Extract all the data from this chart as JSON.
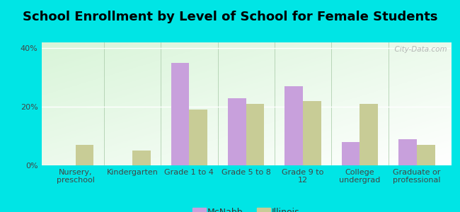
{
  "title": "School Enrollment by Level of School for Female Students",
  "categories": [
    "Nursery,\npreschool",
    "Kindergarten",
    "Grade 1 to 4",
    "Grade 5 to 8",
    "Grade 9 to\n12",
    "College\nundergrad",
    "Graduate or\nprofessional"
  ],
  "mcnabb": [
    0.0,
    0.0,
    35.0,
    23.0,
    27.0,
    8.0,
    9.0
  ],
  "illinois": [
    7.0,
    5.0,
    19.0,
    21.0,
    22.0,
    21.0,
    7.0
  ],
  "mcnabb_color": "#c8a0dc",
  "illinois_color": "#c8cc96",
  "background_color": "#00e5e5",
  "ylabel_ticks": [
    "0%",
    "20%",
    "40%"
  ],
  "yticks": [
    0,
    20,
    40
  ],
  "ylim": [
    0,
    42
  ],
  "bar_width": 0.32,
  "title_fontsize": 13,
  "tick_fontsize": 8,
  "legend_fontsize": 9,
  "watermark": "  City-Data.com"
}
